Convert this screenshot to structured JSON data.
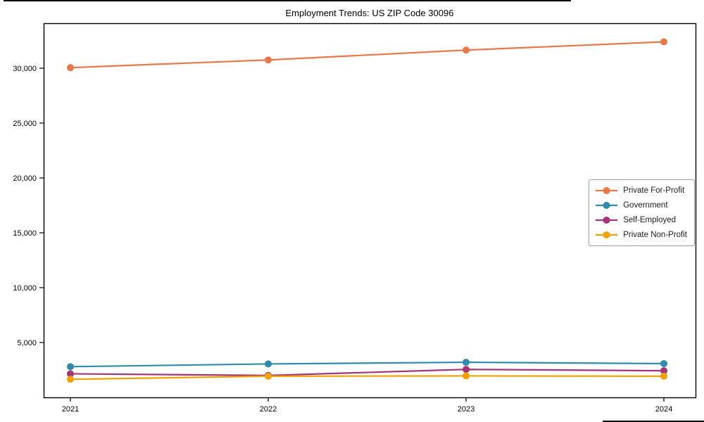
{
  "chart_data": {
    "type": "line",
    "title": "Employment Trends: US ZIP Code 30096",
    "x": [
      2021,
      2022,
      2023,
      2024
    ],
    "x_labels": [
      "2021",
      "2022",
      "2023",
      "2024"
    ],
    "series": [
      {
        "name": "Private For-Profit",
        "color": "#e8784a",
        "values": [
          30050,
          30750,
          31650,
          32400
        ]
      },
      {
        "name": "Government",
        "color": "#2e8bac",
        "values": [
          2800,
          3050,
          3200,
          3080
        ]
      },
      {
        "name": "Self-Employed",
        "color": "#a23577",
        "values": [
          2150,
          2000,
          2550,
          2430
        ]
      },
      {
        "name": "Private Non-Profit",
        "color": "#f2a104",
        "values": [
          1650,
          1930,
          1960,
          1930
        ]
      }
    ],
    "ylim": [
      0,
      34100
    ],
    "yticks": [
      5000,
      10000,
      15000,
      20000,
      25000,
      30000
    ],
    "ytick_labels": [
      "5,000",
      "10,000",
      "15,000",
      "20,000",
      "25,000",
      "30,000"
    ],
    "grid": false,
    "legend_position": "center-right",
    "marker": "circle",
    "axis_color": "#000000",
    "background_color": "#ffffff"
  }
}
